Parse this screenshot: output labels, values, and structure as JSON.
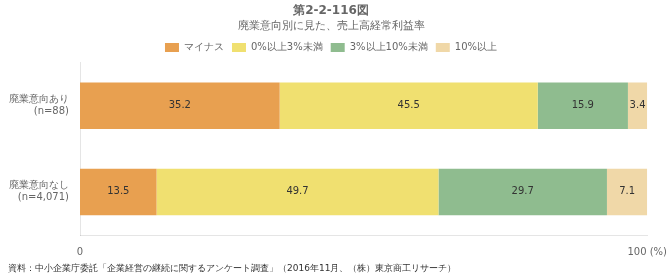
{
  "chart_data": {
    "type": "bar",
    "orientation": "horizontal",
    "stacked": true,
    "title": "第2-2-116図",
    "subtitle": "廃業意向別に見た、売上高経常利益率",
    "categories": [
      "廃業意向あり\n(n=88)",
      "廃業意向なし\n(n=4,071)"
    ],
    "series": [
      {
        "name": "マイナス",
        "color": "#E8A050",
        "values": [
          35.2,
          13.5
        ]
      },
      {
        "name": "0%以上3%未満",
        "color": "#F0E070",
        "values": [
          45.5,
          49.7
        ]
      },
      {
        "name": "3%以上10%未満",
        "color": "#8FBC8F",
        "values": [
          15.9,
          29.7
        ]
      },
      {
        "name": "10%以上",
        "color": "#F0D8A8",
        "values": [
          3.4,
          7.1
        ]
      }
    ],
    "xlim": [
      0,
      100
    ],
    "xticks": [
      0,
      {
        "value": 100,
        "label": "100 (%)"
      }
    ],
    "grid": false,
    "legend": "top",
    "data_labels": true,
    "annotations": [
      "資料：中小企業庁委託「企業経営の継続に関するアンケート調査」（2016年11月、（株）東京商工リサーチ）"
    ]
  }
}
